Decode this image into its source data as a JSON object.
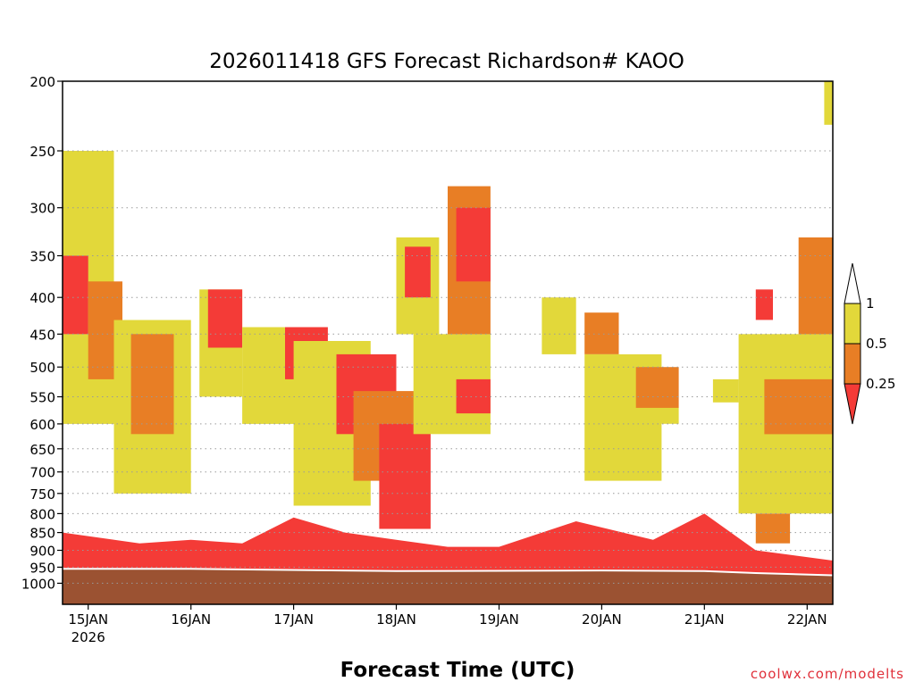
{
  "chart_data": {
    "type": "heatmap",
    "title": "2026011418 GFS Forecast Richardson# KAOO",
    "xlabel": "Forecast Time (UTC)",
    "ylabel": "",
    "credit": "coolwx.com/modelts",
    "y_scale": "log",
    "y_inverted": true,
    "ylim": [
      200,
      1070
    ],
    "y_ticks": [
      200,
      250,
      300,
      350,
      400,
      450,
      500,
      550,
      600,
      650,
      700,
      750,
      800,
      850,
      900,
      950,
      1000
    ],
    "xlim": [
      "2026-01-14T18:00Z",
      "2026-01-22T06:00Z"
    ],
    "x_ticks": [
      {
        "label": "15JAN",
        "sublabel": "2026",
        "time": "2026-01-15T00:00Z"
      },
      {
        "label": "16JAN",
        "time": "2026-01-16T00:00Z"
      },
      {
        "label": "17JAN",
        "time": "2026-01-17T00:00Z"
      },
      {
        "label": "18JAN",
        "time": "2026-01-18T00:00Z"
      },
      {
        "label": "19JAN",
        "time": "2026-01-19T00:00Z"
      },
      {
        "label": "20JAN",
        "time": "2026-01-20T00:00Z"
      },
      {
        "label": "21JAN",
        "time": "2026-01-21T00:00Z"
      },
      {
        "label": "22JAN",
        "time": "2026-01-22T00:00Z"
      }
    ],
    "grid": {
      "y": "dotted",
      "x": false
    },
    "color_scale": {
      "labels": [
        "1",
        "0.5",
        "0.25"
      ],
      "bins": [
        {
          "range": "0.5-1",
          "color": "#e2d83a"
        },
        {
          "range": "0.25-0.5",
          "color": "#e87e25"
        },
        {
          "range": "<0.25",
          "color": "#f43b37"
        }
      ],
      "above_color": "#ffffff",
      "surface_color": "#9b5232"
    },
    "surface_pressure": [
      {
        "time": "2026-01-14T18:00Z",
        "p": 955
      },
      {
        "time": "2026-01-16T00:00Z",
        "p": 955
      },
      {
        "time": "2026-01-18T00:00Z",
        "p": 962
      },
      {
        "time": "2026-01-20T00:00Z",
        "p": 960
      },
      {
        "time": "2026-01-21T00:00Z",
        "p": 962
      },
      {
        "time": "2026-01-21T12:00Z",
        "p": 968
      },
      {
        "time": "2026-01-22T06:00Z",
        "p": 975
      }
    ],
    "low_level_ri_lt_025_top": [
      {
        "time": "2026-01-14T18:00Z",
        "p": 850
      },
      {
        "time": "2026-01-15T12:00Z",
        "p": 880
      },
      {
        "time": "2026-01-16T00:00Z",
        "p": 870
      },
      {
        "time": "2026-01-16T12:00Z",
        "p": 880
      },
      {
        "time": "2026-01-17T00:00Z",
        "p": 810
      },
      {
        "time": "2026-01-17T12:00Z",
        "p": 850
      },
      {
        "time": "2026-01-18T00:00Z",
        "p": 870
      },
      {
        "time": "2026-01-18T12:00Z",
        "p": 890
      },
      {
        "time": "2026-01-19T00:00Z",
        "p": 890
      },
      {
        "time": "2026-01-19T18:00Z",
        "p": 820
      },
      {
        "time": "2026-01-20T12:00Z",
        "p": 870
      },
      {
        "time": "2026-01-21T00:00Z",
        "p": 800
      },
      {
        "time": "2026-01-21T12:00Z",
        "p": 900
      },
      {
        "time": "2026-01-22T06:00Z",
        "p": 930
      }
    ],
    "regions": [
      {
        "t0": "2026-01-14T18:00Z",
        "t1": "2026-01-15T06:00Z",
        "p0": 250,
        "p1": 600,
        "ri": "0.5-1"
      },
      {
        "t0": "2026-01-14T18:00Z",
        "t1": "2026-01-15T00:00Z",
        "p0": 350,
        "p1": 450,
        "ri": "<0.25"
      },
      {
        "t0": "2026-01-15T00:00Z",
        "t1": "2026-01-15T08:00Z",
        "p0": 380,
        "p1": 520,
        "ri": "0.25-0.5"
      },
      {
        "t0": "2026-01-15T06:00Z",
        "t1": "2026-01-16T00:00Z",
        "p0": 430,
        "p1": 750,
        "ri": "0.5-1"
      },
      {
        "t0": "2026-01-15T10:00Z",
        "t1": "2026-01-15T20:00Z",
        "p0": 450,
        "p1": 620,
        "ri": "0.25-0.5"
      },
      {
        "t0": "2026-01-16T02:00Z",
        "t1": "2026-01-16T12:00Z",
        "p0": 390,
        "p1": 550,
        "ri": "0.5-1"
      },
      {
        "t0": "2026-01-16T04:00Z",
        "t1": "2026-01-16T12:00Z",
        "p0": 390,
        "p1": 470,
        "ri": "<0.25"
      },
      {
        "t0": "2026-01-16T12:00Z",
        "t1": "2026-01-17T04:00Z",
        "p0": 440,
        "p1": 600,
        "ri": "0.5-1"
      },
      {
        "t0": "2026-01-16T22:00Z",
        "t1": "2026-01-17T08:00Z",
        "p0": 440,
        "p1": 520,
        "ri": "<0.25"
      },
      {
        "t0": "2026-01-17T00:00Z",
        "t1": "2026-01-17T18:00Z",
        "p0": 460,
        "p1": 780,
        "ri": "0.5-1"
      },
      {
        "t0": "2026-01-17T10:00Z",
        "t1": "2026-01-18T00:00Z",
        "p0": 480,
        "p1": 620,
        "ri": "<0.25"
      },
      {
        "t0": "2026-01-17T14:00Z",
        "t1": "2026-01-18T06:00Z",
        "p0": 540,
        "p1": 720,
        "ri": "0.25-0.5"
      },
      {
        "t0": "2026-01-17T20:00Z",
        "t1": "2026-01-18T08:00Z",
        "p0": 600,
        "p1": 840,
        "ri": "<0.25"
      },
      {
        "t0": "2026-01-18T00:00Z",
        "t1": "2026-01-18T10:00Z",
        "p0": 330,
        "p1": 450,
        "ri": "0.5-1"
      },
      {
        "t0": "2026-01-18T02:00Z",
        "t1": "2026-01-18T08:00Z",
        "p0": 340,
        "p1": 400,
        "ri": "<0.25"
      },
      {
        "t0": "2026-01-18T04:00Z",
        "t1": "2026-01-18T22:00Z",
        "p0": 450,
        "p1": 620,
        "ri": "0.5-1"
      },
      {
        "t0": "2026-01-18T12:00Z",
        "t1": "2026-01-18T22:00Z",
        "p0": 280,
        "p1": 450,
        "ri": "0.25-0.5"
      },
      {
        "t0": "2026-01-18T14:00Z",
        "t1": "2026-01-18T22:00Z",
        "p0": 300,
        "p1": 380,
        "ri": "<0.25"
      },
      {
        "t0": "2026-01-18T14:00Z",
        "t1": "2026-01-18T22:00Z",
        "p0": 520,
        "p1": 580,
        "ri": "<0.25"
      },
      {
        "t0": "2026-01-19T10:00Z",
        "t1": "2026-01-19T18:00Z",
        "p0": 400,
        "p1": 480,
        "ri": "0.5-1"
      },
      {
        "t0": "2026-01-19T20:00Z",
        "t1": "2026-01-20T04:00Z",
        "p0": 420,
        "p1": 480,
        "ri": "0.25-0.5"
      },
      {
        "t0": "2026-01-19T20:00Z",
        "t1": "2026-01-20T14:00Z",
        "p0": 480,
        "p1": 720,
        "ri": "0.5-1"
      },
      {
        "t0": "2026-01-20T08:00Z",
        "t1": "2026-01-20T18:00Z",
        "p0": 500,
        "p1": 570,
        "ri": "0.25-0.5"
      },
      {
        "t0": "2026-01-20T08:00Z",
        "t1": "2026-01-20T18:00Z",
        "p0": 570,
        "p1": 600,
        "ri": "0.5-1"
      },
      {
        "t0": "2026-01-21T02:00Z",
        "t1": "2026-01-21T08:00Z",
        "p0": 520,
        "p1": 560,
        "ri": "0.5-1"
      },
      {
        "t0": "2026-01-21T08:00Z",
        "t1": "2026-01-22T06:00Z",
        "p0": 450,
        "p1": 800,
        "ri": "0.5-1"
      },
      {
        "t0": "2026-01-21T14:00Z",
        "t1": "2026-01-22T06:00Z",
        "p0": 520,
        "p1": 620,
        "ri": "0.25-0.5"
      },
      {
        "t0": "2026-01-21T12:00Z",
        "t1": "2026-01-21T16:00Z",
        "p0": 390,
        "p1": 430,
        "ri": "<0.25"
      },
      {
        "t0": "2026-01-21T22:00Z",
        "t1": "2026-01-22T06:00Z",
        "p0": 330,
        "p1": 450,
        "ri": "0.25-0.5"
      },
      {
        "t0": "2026-01-22T04:00Z",
        "t1": "2026-01-22T06:00Z",
        "p0": 200,
        "p1": 230,
        "ri": "0.5-1"
      },
      {
        "t0": "2026-01-21T12:00Z",
        "t1": "2026-01-21T20:00Z",
        "p0": 800,
        "p1": 880,
        "ri": "0.25-0.5"
      }
    ]
  }
}
